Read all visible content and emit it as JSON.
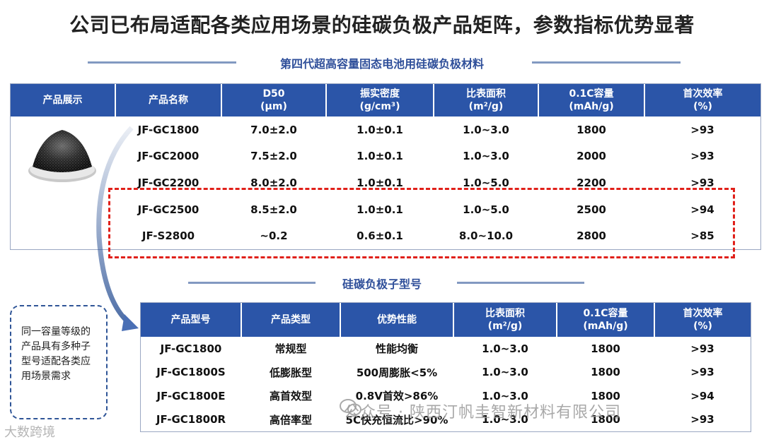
{
  "title": "公司已布局适配各类应用场景的硅碳负极产品矩阵，参数指标优势显著",
  "section1": {
    "heading": "第四代超高容量固态电池用硅碳负极材料",
    "headers": [
      "产品展示",
      "产品名称",
      "D50\n(μm)",
      "振实密度\n(g/cm³)",
      "比表面积\n(m²/g)",
      "0.1C容量\n(mAh/g)",
      "首次效率\n(%)"
    ],
    "rows": [
      [
        "JF-GC1800",
        "7.0±2.0",
        "1.0±0.1",
        "1.0~3.0",
        "1800",
        ">93"
      ],
      [
        "JF-GC2000",
        "7.5±2.0",
        "1.0±0.1",
        "1.0~3.0",
        "2000",
        ">93"
      ],
      [
        "JF-GC2200",
        "8.0±2.0",
        "1.0±0.1",
        "1.0~5.0",
        "2200",
        ">93"
      ],
      [
        "JF-GC2500",
        "8.5±2.0",
        "1.0±0.1",
        "1.0~5.0",
        "2500",
        ">94"
      ],
      [
        "JF-S2800",
        "~0.2",
        "0.6±0.1",
        "8.0~10.0",
        "2800",
        ">85"
      ]
    ]
  },
  "section2": {
    "heading": "硅碳负极子型号",
    "headers": [
      "产品型号",
      "产品类型",
      "优势性能",
      "比表面积\n(m²/g)",
      "0.1C容量\n(mAh/g)",
      "首次效率\n(%)"
    ],
    "rows": [
      [
        "JF-GC1800",
        "常规型",
        "性能均衡",
        "1.0~3.0",
        "1800",
        ">93"
      ],
      [
        "JF-GC1800S",
        "低膨胀型",
        "500周膨胀<5%",
        "1.0~3.0",
        "1800",
        ">93"
      ],
      [
        "JF-GC1800E",
        "高首效型",
        "0.8V首效>86%",
        "1.0~3.0",
        "1800",
        ">94"
      ],
      [
        "JF-GC1800R",
        "高倍率型",
        "5C快充恒流比>90%",
        "1.0~3.0",
        "1800",
        ">93"
      ]
    ]
  },
  "note": "同一容量等级的产品具有多种子型号适配各类应用场景需求",
  "watermark": "公众号 · 陕西汀帆圭智新材料有限公司",
  "watermark_left": "大数跨境",
  "colors": {
    "header_bg": "#2b55a8",
    "highlight_dash": "#e0201a",
    "heading_text": "#2f4f9a"
  }
}
